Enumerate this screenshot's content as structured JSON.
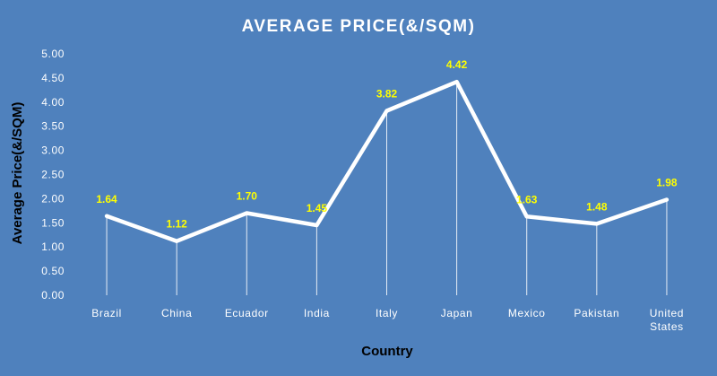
{
  "chart_data": {
    "type": "line",
    "title": "AVERAGE PRICE(&/SQM)",
    "xlabel": "Country",
    "ylabel": "Average Price(&/SQM)",
    "ylim": [
      0,
      5
    ],
    "y_ticks": [
      "0.00",
      "0.50",
      "1.00",
      "1.50",
      "2.00",
      "2.50",
      "3.00",
      "3.50",
      "4.00",
      "4.50",
      "5.00"
    ],
    "categories": [
      [
        "Brazil"
      ],
      [
        "China"
      ],
      [
        "Ecuador"
      ],
      [
        "India"
      ],
      [
        "Italy"
      ],
      [
        "Japan"
      ],
      [
        "Mexico"
      ],
      [
        "Pakistan"
      ],
      [
        "United",
        "States"
      ]
    ],
    "values": [
      1.64,
      1.12,
      1.7,
      1.45,
      3.82,
      4.42,
      1.63,
      1.48,
      1.98
    ],
    "data_labels": [
      "1.64",
      "1.12",
      "1.70",
      "1.45",
      "3.82",
      "4.42",
      "1.63",
      "1.48",
      "1.98"
    ],
    "grid": false,
    "legend": "none",
    "colors": {
      "background": "#4f81bd",
      "line": "#ffffff",
      "data_label": "#ffff00",
      "axis_title": "#000000"
    }
  }
}
